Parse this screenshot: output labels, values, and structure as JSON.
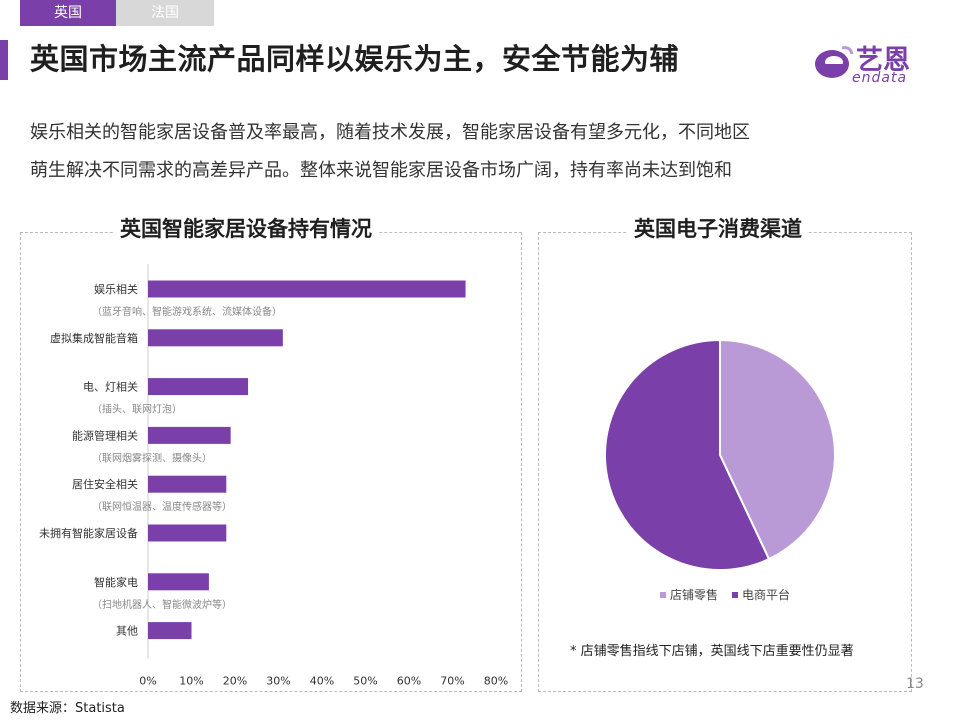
{
  "tabs": [
    {
      "label": "英国",
      "active": true
    },
    {
      "label": "法国",
      "active": false
    }
  ],
  "title": "英国市场主流产品同样以娱乐为主，安全节能为辅",
  "logo": {
    "cn": "艺恩",
    "en": "endata"
  },
  "description": [
    "娱乐相关的智能家居设备普及率最高，随着技术发展，智能家居设备有望多元化，不同地区",
    "萌生解决不同需求的高差异产品。整体来说智能家居设备市场广阔，持有率尚未达到饱和"
  ],
  "colors": {
    "accent": "#7b3fa9",
    "light": "#b99ad6"
  },
  "chart_data": [
    {
      "type": "bar",
      "orientation": "horizontal",
      "title": "英国智能家居设备持有情况",
      "categories": [
        {
          "label": "娱乐相关",
          "sublabel": "（蓝牙音响、智能游戏系统、流媒体设备）"
        },
        {
          "label": "虚拟集成智能音箱",
          "sublabel": ""
        },
        {
          "label": "电、灯相关",
          "sublabel": "（插头、联网灯泡）"
        },
        {
          "label": "能源管理相关",
          "sublabel": "（联网烟雾探测、摄像头）"
        },
        {
          "label": "居住安全相关",
          "sublabel": "（联网恒温器、温度传感器等）"
        },
        {
          "label": "未拥有智能家居设备",
          "sublabel": ""
        },
        {
          "label": "智能家电",
          "sublabel": "（扫地机器人、智能微波炉等）"
        },
        {
          "label": "其他",
          "sublabel": ""
        }
      ],
      "values": [
        73,
        31,
        23,
        19,
        18,
        18,
        14,
        10
      ],
      "xlim": [
        0,
        80
      ],
      "xticks": [
        "0%",
        "10%",
        "20%",
        "30%",
        "40%",
        "50%",
        "60%",
        "70%",
        "80%"
      ],
      "grid": false
    },
    {
      "type": "pie",
      "title": "英国电子消费渠道",
      "slices": [
        {
          "label": "店铺零售",
          "value": 43,
          "color": "#b99ad6"
        },
        {
          "label": "电商平台",
          "value": 57,
          "color": "#7b3fa9"
        }
      ],
      "legend": "bottom"
    }
  ],
  "footnote": "* 店铺零售指线下店铺，英国线下店重要性仍显著",
  "page_number": "13",
  "source": "数据来源：Statista"
}
